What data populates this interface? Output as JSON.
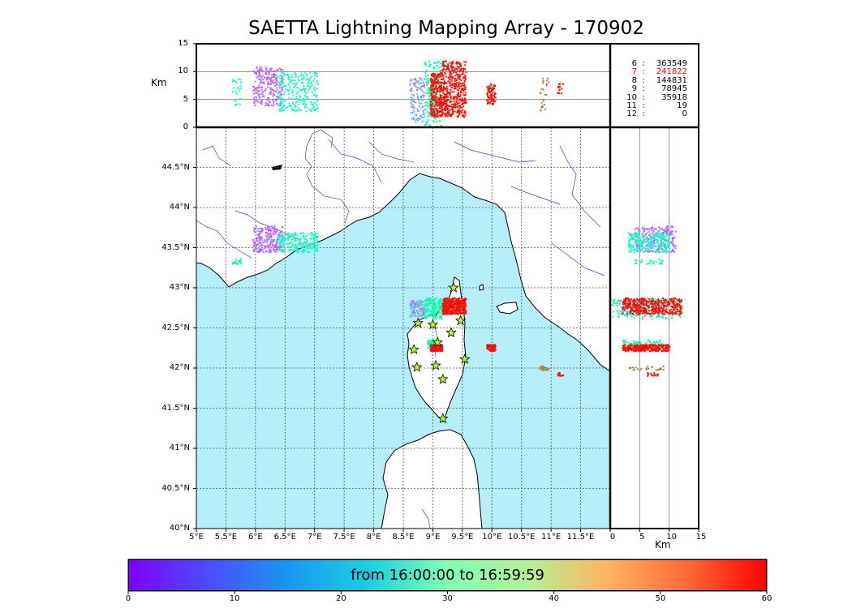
{
  "title": "SAETTA Lightning Mapping Array - 170902",
  "top_panel": {
    "ylabel": "Km",
    "y_ticks": [
      "15",
      "10",
      "5",
      "0"
    ]
  },
  "right_panel": {
    "xlabel": "Km",
    "x_ticks": [
      "0",
      "5",
      "10",
      "15"
    ]
  },
  "map": {
    "lon_ticks": [
      "5°E",
      "5.5°E",
      "6°E",
      "6.5°E",
      "7°E",
      "7.5°E",
      "8°E",
      "8.5°E",
      "9°E",
      "9.5°E",
      "10°E",
      "10.5°E",
      "11°E",
      "11.5°E"
    ],
    "lat_ticks": [
      "40°N",
      "40.5°N",
      "41°N",
      "41.5°N",
      "42°N",
      "42.5°N",
      "43°N",
      "43.5°N",
      "44°N",
      "44.5°N"
    ],
    "lon_range": [
      5,
      12
    ],
    "lat_range": [
      40,
      45
    ]
  },
  "station_counts": [
    {
      "stations": "6",
      "count": "363549",
      "color": "#000000"
    },
    {
      "stations": "7",
      "count": "241822",
      "color": "#ff0000"
    },
    {
      "stations": "8",
      "count": "144831",
      "color": "#000000"
    },
    {
      "stations": "9",
      "count": "78945",
      "color": "#000000"
    },
    {
      "stations": "10",
      "count": "35918",
      "color": "#000000"
    },
    {
      "stations": "11",
      "count": "19",
      "color": "#000000"
    },
    {
      "stations": "12",
      "count": "0",
      "color": "#000000"
    }
  ],
  "colorbar": {
    "label": "from 16:00:00 to 16:59:59",
    "ticks": [
      "0",
      "10",
      "20",
      "30",
      "40",
      "50",
      "60"
    ],
    "range": [
      0,
      60
    ]
  },
  "colors": {
    "sea": "#b6eefa",
    "land": "#ffffff",
    "rivers": "#3a3ad8",
    "border": "#333333",
    "station_fill": "#aaff2a"
  },
  "stations": [
    {
      "lon": 9.35,
      "lat": 43.0
    },
    {
      "lon": 9.47,
      "lat": 42.59
    },
    {
      "lon": 8.75,
      "lat": 42.56
    },
    {
      "lon": 9.0,
      "lat": 42.54
    },
    {
      "lon": 9.31,
      "lat": 42.44
    },
    {
      "lon": 9.08,
      "lat": 42.32
    },
    {
      "lon": 8.68,
      "lat": 42.23
    },
    {
      "lon": 9.54,
      "lat": 42.11
    },
    {
      "lon": 8.73,
      "lat": 42.01
    },
    {
      "lon": 9.05,
      "lat": 42.03
    },
    {
      "lon": 9.17,
      "lat": 41.86
    },
    {
      "lon": 9.17,
      "lat": 41.37
    }
  ],
  "lightning_clusters": [
    {
      "lon": [
        5.95,
        6.45
      ],
      "lat": [
        43.45,
        43.78
      ],
      "alt": [
        4,
        11
      ],
      "time": [
        5,
        12
      ],
      "n": 240
    },
    {
      "lon": [
        6.35,
        7.05
      ],
      "lat": [
        43.45,
        43.7
      ],
      "alt": [
        3,
        10
      ],
      "time": [
        22,
        30
      ],
      "n": 260
    },
    {
      "lon": [
        8.6,
        8.85
      ],
      "lat": [
        42.65,
        42.85
      ],
      "alt": [
        1,
        9
      ],
      "time": [
        5,
        25
      ],
      "n": 120
    },
    {
      "lon": [
        8.85,
        9.15
      ],
      "lat": [
        42.62,
        42.88
      ],
      "alt": [
        0,
        12
      ],
      "time": [
        28,
        36
      ],
      "n": 160
    },
    {
      "lon": [
        9.15,
        9.55
      ],
      "lat": [
        42.68,
        42.88
      ],
      "alt": [
        2,
        12
      ],
      "time": [
        57,
        60
      ],
      "n": 420
    },
    {
      "lon": [
        8.9,
        9.05
      ],
      "lat": [
        42.26,
        42.36
      ],
      "alt": [
        2,
        9
      ],
      "time": [
        30,
        34
      ],
      "n": 80
    },
    {
      "lon": [
        8.95,
        9.15
      ],
      "lat": [
        42.22,
        42.3
      ],
      "alt": [
        2,
        10
      ],
      "time": [
        57,
        60
      ],
      "n": 260
    },
    {
      "lon": [
        9.9,
        10.05
      ],
      "lat": [
        42.22,
        42.3
      ],
      "alt": [
        4,
        8
      ],
      "time": [
        57,
        60
      ],
      "n": 70
    },
    {
      "lon": [
        10.8,
        10.95
      ],
      "lat": [
        41.98,
        42.03
      ],
      "alt": [
        3,
        9
      ],
      "time": [
        48,
        52
      ],
      "n": 25
    },
    {
      "lon": [
        11.1,
        11.2
      ],
      "lat": [
        41.91,
        41.95
      ],
      "alt": [
        6,
        9
      ],
      "time": [
        57,
        60
      ],
      "n": 15
    },
    {
      "lon": [
        5.6,
        5.75
      ],
      "lat": [
        43.3,
        43.37
      ],
      "alt": [
        4,
        9
      ],
      "time": [
        30,
        34
      ],
      "n": 25
    }
  ]
}
